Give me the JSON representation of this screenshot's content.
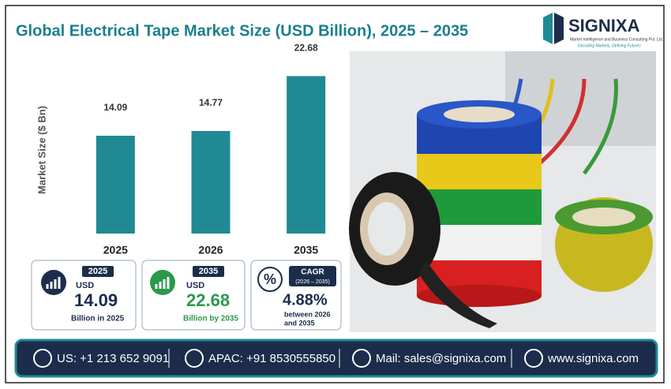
{
  "chart_data": {
    "type": "bar",
    "title": "Global Electrical Tape Market Size (USD Billion), 2025 – 2035",
    "y_label": "Market Size ($ Bn)",
    "categories": [
      "2025",
      "2026",
      "2035"
    ],
    "values": [
      14.09,
      14.77,
      22.68
    ],
    "color": "#1f8a94",
    "ylim": [
      0,
      25
    ],
    "grid": false
  },
  "logo": {
    "name": "SIGNIXA",
    "tagline": "Market Intelligence and Business Consulting Pvt. Ltd.",
    "motto": "Decoding Markets, Defining Futures"
  },
  "cards": [
    {
      "badge": "2025",
      "unit": "USD",
      "value": "14.09",
      "caption": "Billion in 2025"
    },
    {
      "badge": "2035",
      "unit": "USD",
      "value": "22.68",
      "caption": "Billion by 2035"
    },
    {
      "badge": "CAGR",
      "period": "(2026 – 2035)",
      "value": "4.88%",
      "caption": "between 2026",
      "caption2": "and 2035"
    }
  ],
  "footer": {
    "us": "US: +1 213 652 9091",
    "apac": "APAC: +91 8530555850",
    "mail": "Mail: sales@signixa.com",
    "web": "www.signixa.com"
  }
}
